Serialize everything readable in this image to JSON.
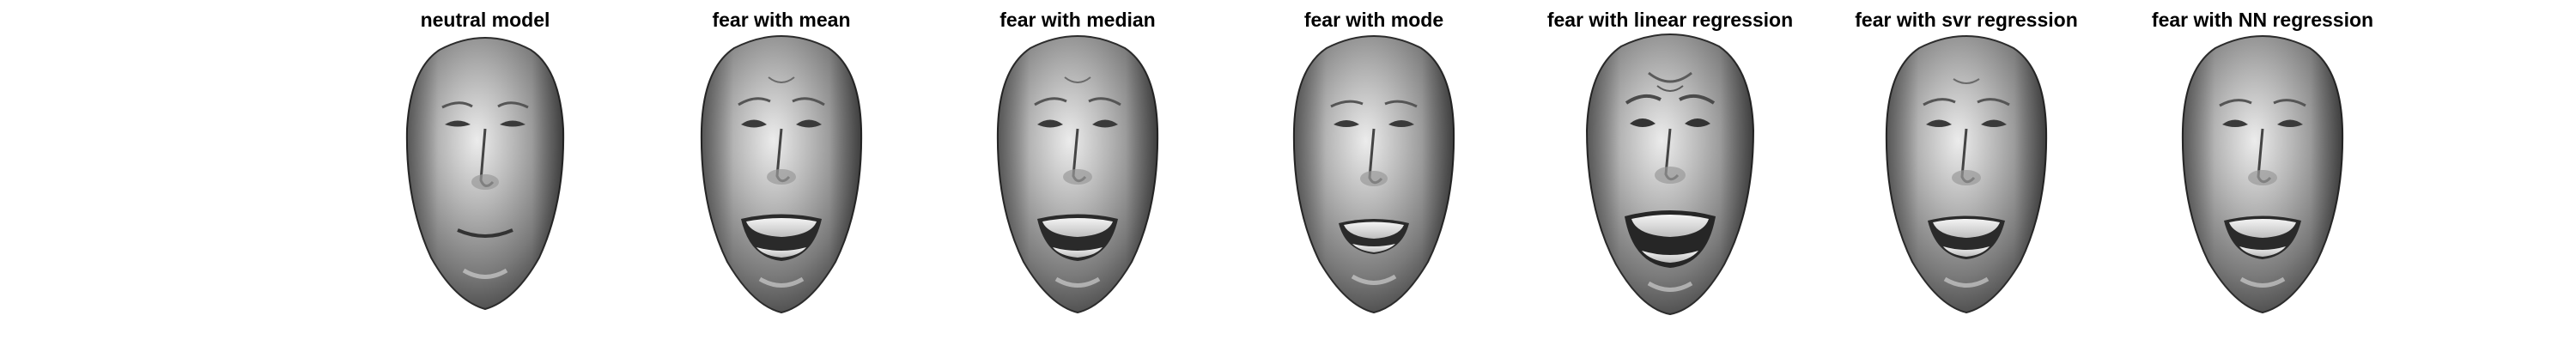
{
  "figure": {
    "panels": [
      {
        "title": "neutral model",
        "expression": "neutral"
      },
      {
        "title": "fear with mean",
        "expression": "fear"
      },
      {
        "title": "fear with median",
        "expression": "fear"
      },
      {
        "title": "fear with mode",
        "expression": "fear"
      },
      {
        "title": "fear with linear regression",
        "expression": "fear"
      },
      {
        "title": "fear with svr regression",
        "expression": "fear"
      },
      {
        "title": "fear with NN regression",
        "expression": "fear"
      }
    ]
  },
  "colors": {
    "background": "#ffffff",
    "title_text": "#000000",
    "face_shading": "grayscale"
  }
}
